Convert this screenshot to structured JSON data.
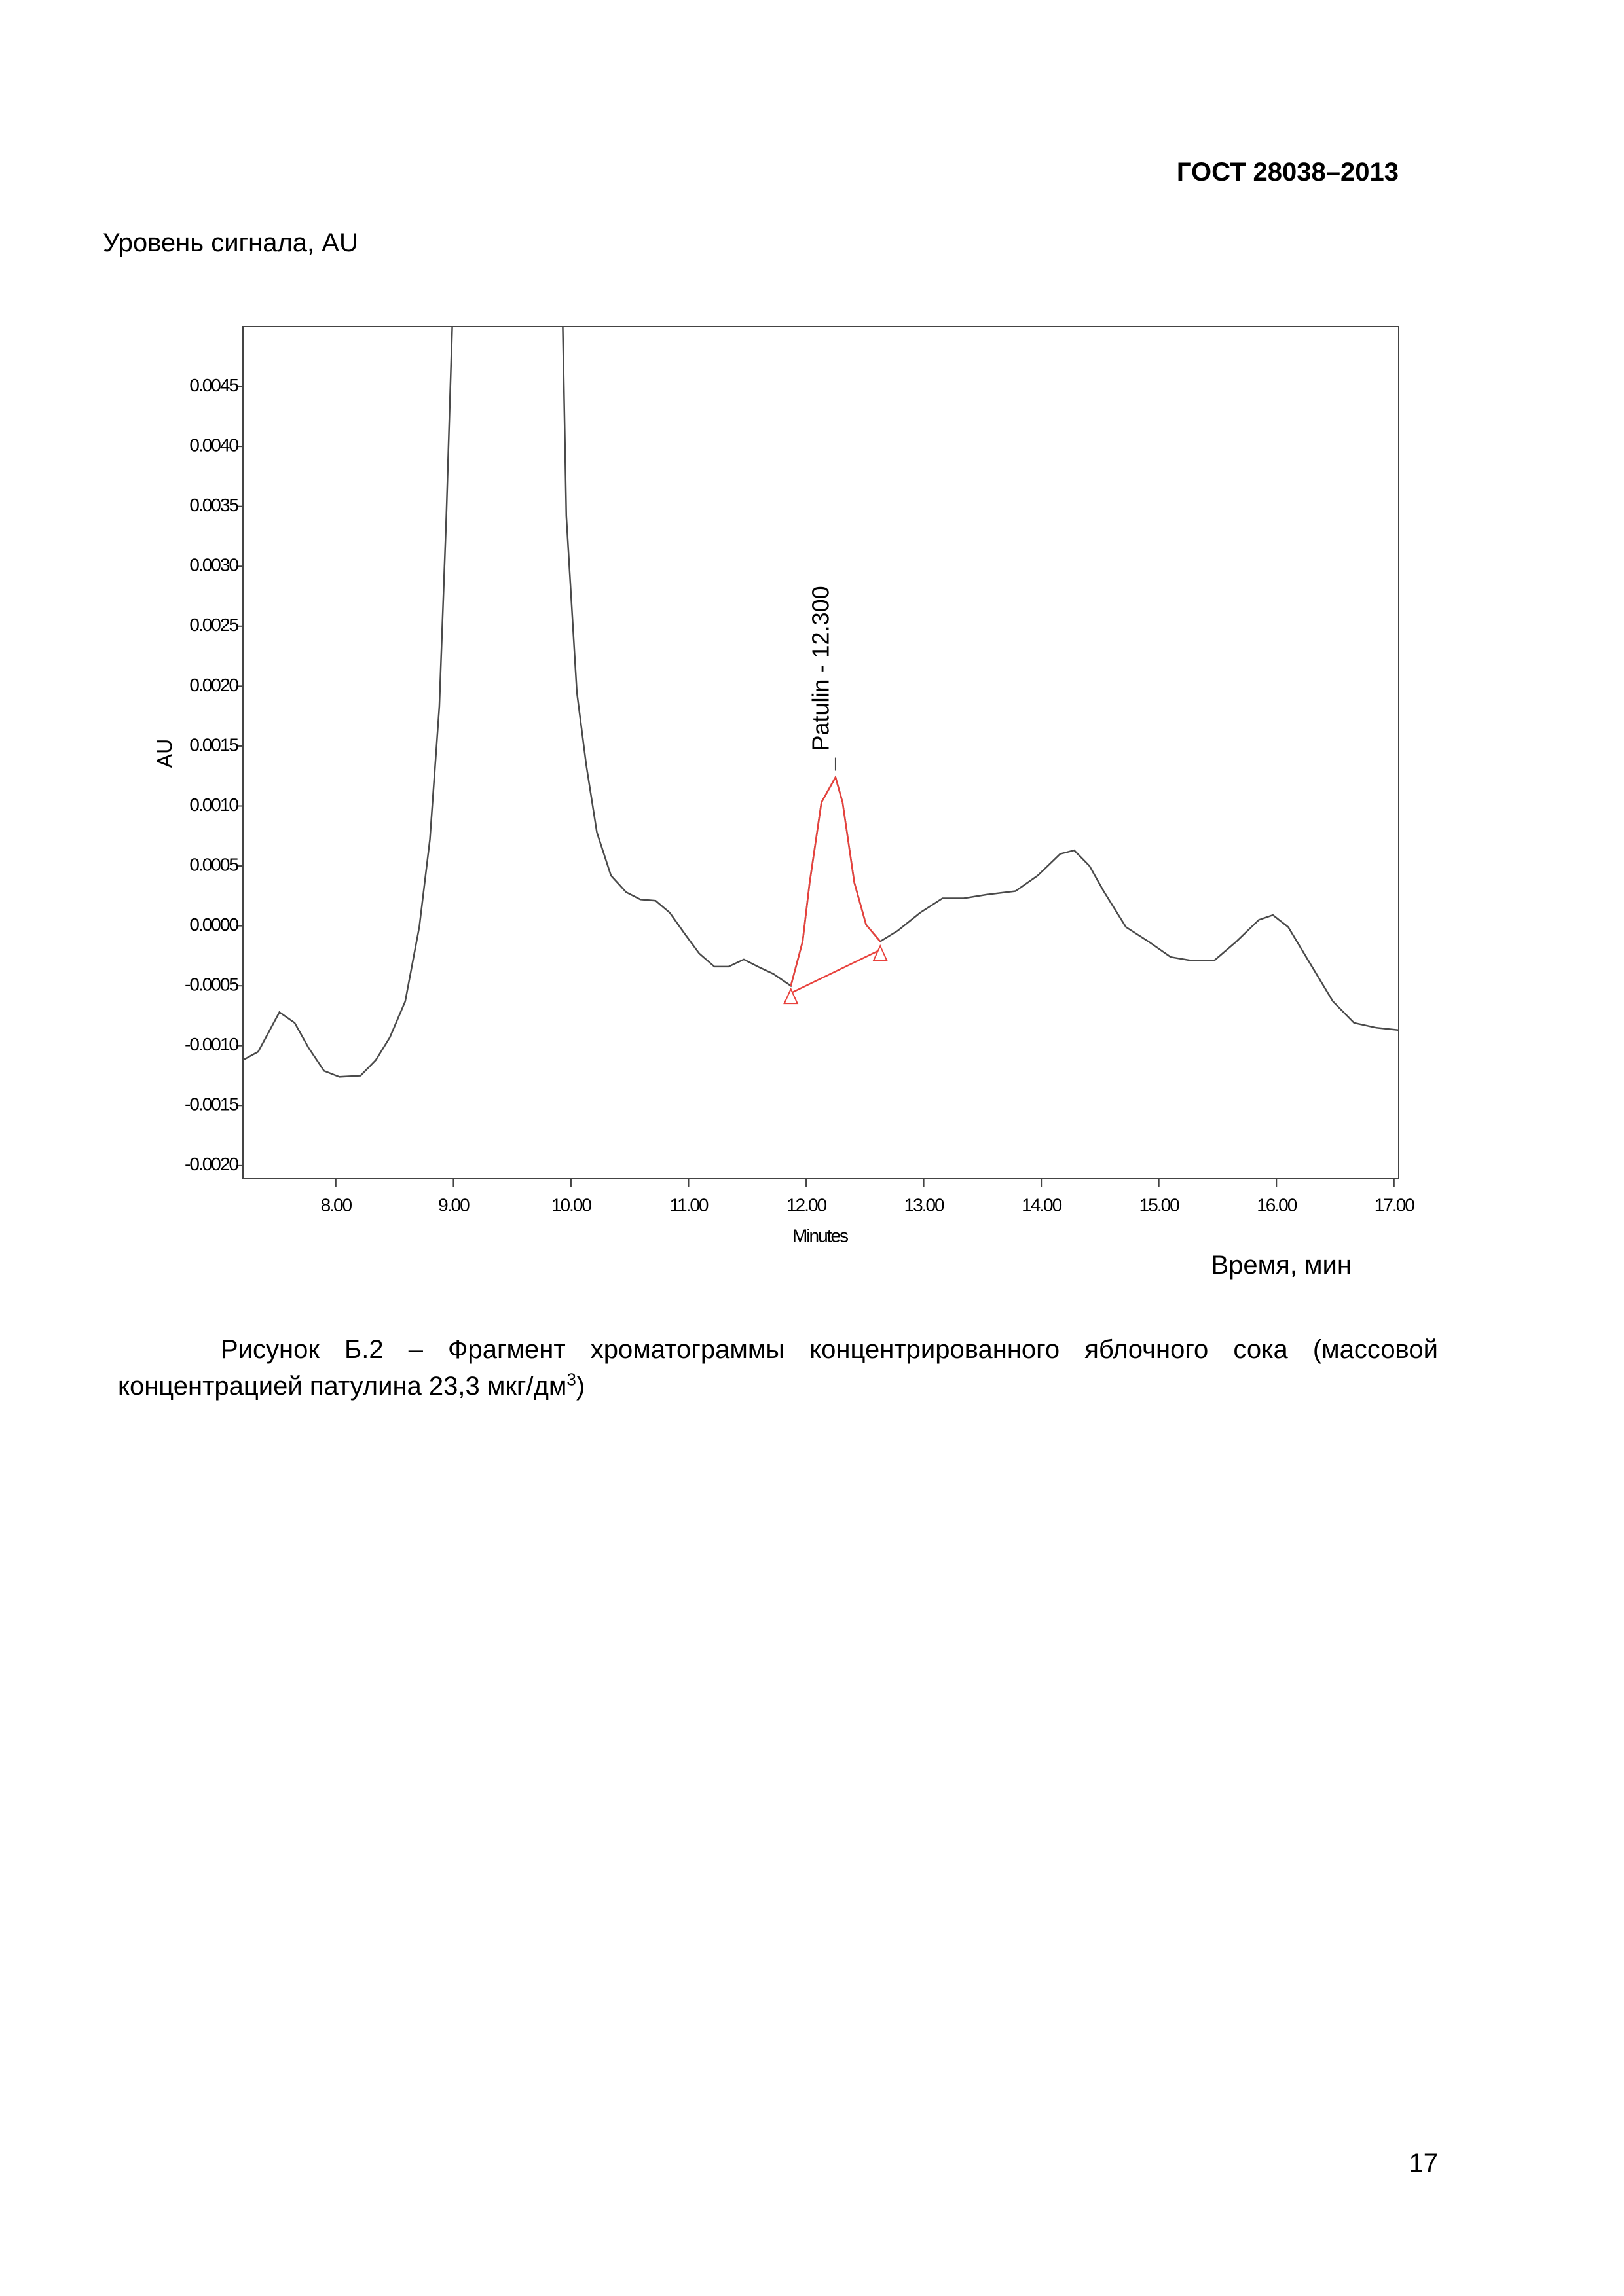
{
  "header": {
    "title": "ГОСТ 28038–2013"
  },
  "signal_label": "Уровень сигнала, AU",
  "time_label": "Время, мин",
  "chart_data": {
    "type": "line",
    "xlabel": "Minutes",
    "ylabel": "AU",
    "annotation": "Patulin - 12.300",
    "xlim": [
      7.21,
      17.04
    ],
    "ylim": [
      -0.00211,
      0.005
    ],
    "xticks": [
      {
        "value": 8,
        "label": "8.00"
      },
      {
        "value": 9,
        "label": "9.00"
      },
      {
        "value": 10,
        "label": "10.00"
      },
      {
        "value": 11,
        "label": "11.00"
      },
      {
        "value": 12,
        "label": "12.00"
      },
      {
        "value": 13,
        "label": "13.00"
      },
      {
        "value": 14,
        "label": "14.00"
      },
      {
        "value": 15,
        "label": "15.00"
      },
      {
        "value": 16,
        "label": "16.00"
      },
      {
        "value": 17,
        "label": "17.00"
      }
    ],
    "yticks": [
      {
        "value": -0.002,
        "label": "-0.0020"
      },
      {
        "value": -0.0015,
        "label": "-0.0015"
      },
      {
        "value": -0.001,
        "label": "-0.0010"
      },
      {
        "value": -0.0005,
        "label": "-0.0005"
      },
      {
        "value": 0,
        "label": "0.0000"
      },
      {
        "value": 0.0005,
        "label": "0.0005"
      },
      {
        "value": 0.001,
        "label": "0.0010"
      },
      {
        "value": 0.0015,
        "label": "0.0015"
      },
      {
        "value": 0.002,
        "label": "0.0020"
      },
      {
        "value": 0.0025,
        "label": "0.0025"
      },
      {
        "value": 0.003,
        "label": "0.0030"
      },
      {
        "value": 0.0035,
        "label": "0.0035"
      },
      {
        "value": 0.004,
        "label": "0.0040"
      },
      {
        "value": 0.0045,
        "label": "0.0045"
      }
    ],
    "grid": false,
    "series": [
      {
        "color": "#4a4a4a",
        "x": [
          7.21,
          7.34,
          7.52,
          7.65,
          7.77,
          7.9,
          8.03,
          8.21,
          8.34,
          8.46,
          8.59,
          8.71,
          8.8,
          8.88,
          8.94,
          8.99,
          9.5,
          9.93,
          9.96,
          10.05,
          10.13,
          10.22,
          10.34,
          10.47,
          10.59,
          10.72,
          10.84,
          10.97,
          11.09,
          11.22,
          11.34,
          11.47,
          11.59,
          11.72,
          11.87,
          11.97,
          12.03,
          12.13,
          12.25,
          12.31,
          12.41,
          12.51,
          12.63,
          12.78,
          12.97,
          13.16,
          13.34,
          13.53,
          13.78,
          13.97,
          14.16,
          14.28,
          14.41,
          14.53,
          14.72,
          14.91,
          15.1,
          15.28,
          15.47,
          15.66,
          15.85,
          15.97,
          16.1,
          16.29,
          16.48,
          16.66,
          16.85,
          17.04
        ],
        "values": [
          -0.00112,
          -0.00105,
          -0.00072,
          -0.00081,
          -0.00102,
          -0.00121,
          -0.00126,
          -0.00125,
          -0.00112,
          -0.00093,
          -0.00063,
          -1e-05,
          0.00072,
          0.00183,
          0.00342,
          0.005,
          null,
          0.005,
          0.00342,
          0.00195,
          0.00134,
          0.00078,
          0.00042,
          0.00028,
          0.00022,
          0.00021,
          0.00011,
          -7e-05,
          -0.00023,
          -0.00034,
          -0.00034,
          -0.00028,
          -0.00034,
          -0.0004,
          -0.0005,
          -0.00013,
          0.00036,
          0.00103,
          0.00124,
          0.00103,
          0.00036,
          1e-05,
          -0.00013,
          -4e-05,
          0.00011,
          0.00023,
          0.00023,
          0.00026,
          0.00029,
          0.00042,
          0.0006,
          0.00063,
          0.0005,
          0.00029,
          -1e-05,
          -0.00013,
          -0.00026,
          -0.00029,
          -0.00029,
          -0.00013,
          5e-05,
          9e-05,
          -1e-05,
          -0.00032,
          -0.00063,
          -0.00081,
          -0.00085,
          -0.00087
        ]
      },
      {
        "color": "#e8413c",
        "x": [
          11.87,
          11.97,
          12.03,
          12.13,
          12.25,
          12.31,
          12.41,
          12.51,
          12.63
        ],
        "values": [
          -0.0005,
          -0.00013,
          0.00036,
          0.00103,
          0.00124,
          0.00103,
          0.00036,
          1e-05,
          -0.00013
        ]
      },
      {
        "color": "#e8413c",
        "marker": "triangle",
        "x": [
          11.87,
          12.63
        ],
        "values": [
          -0.00056,
          -0.0002
        ]
      }
    ]
  },
  "caption": {
    "text": "Рисунок Б.2 – Фрагмент хроматограммы концентрированного яблочного сока (массовой концентрацией патулина 23,3 мкг/дм",
    "sup": "3",
    "end": ")"
  },
  "page_number": "17"
}
